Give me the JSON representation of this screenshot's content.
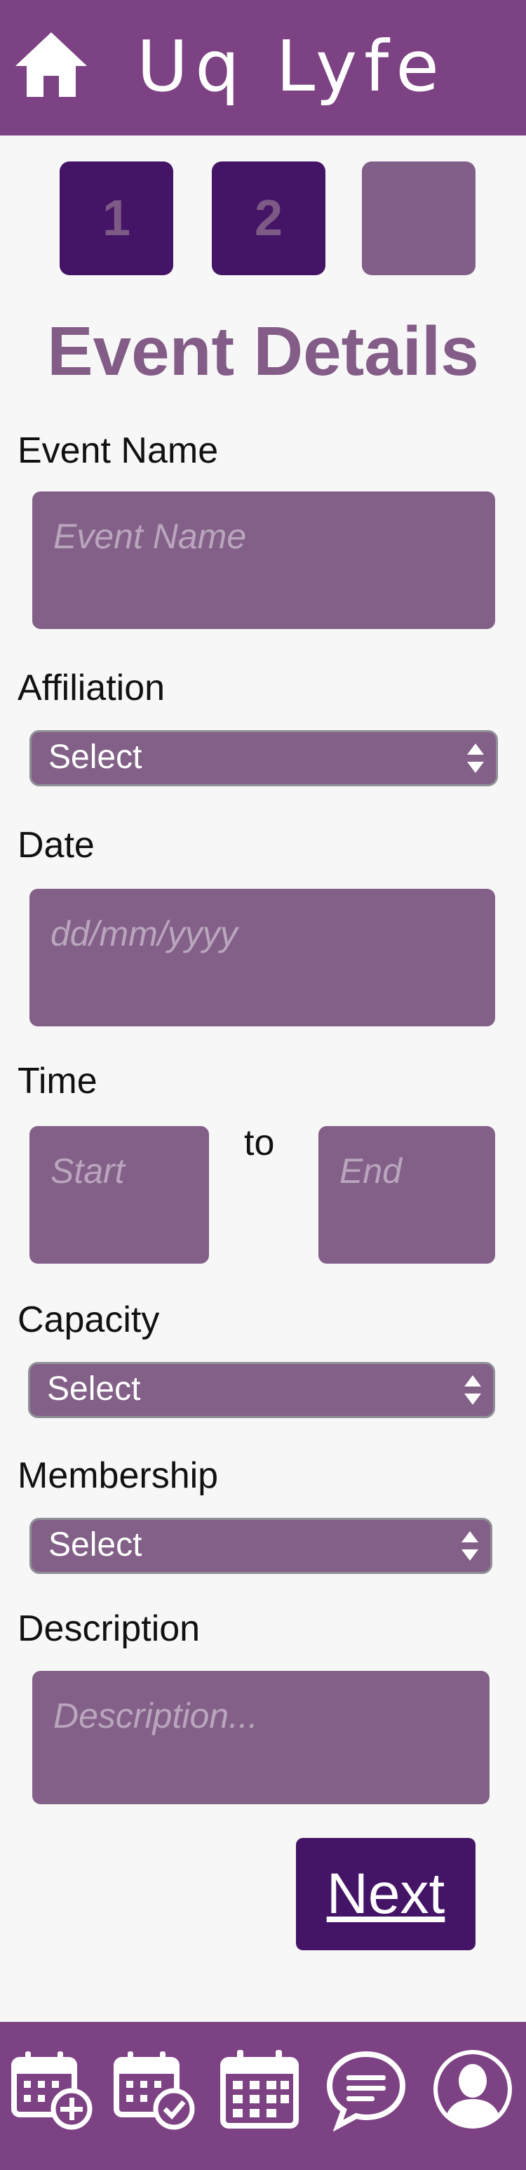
{
  "header": {
    "brand": "Uq Lyfe",
    "home_icon": "home-icon",
    "color": "#7d4283"
  },
  "steps": [
    {
      "label": "1",
      "state": "complete"
    },
    {
      "label": "2",
      "state": "current"
    },
    {
      "label": "",
      "state": "upcoming"
    }
  ],
  "page_title": "Event Details",
  "form": {
    "event_name": {
      "label": "Event Name",
      "placeholder": "Event Name"
    },
    "affiliation": {
      "label": "Affiliation",
      "selected": "Select"
    },
    "date": {
      "label": "Date",
      "placeholder": "dd/mm/yyyy"
    },
    "time": {
      "label": "Time",
      "start_placeholder": "Start",
      "separator": "to",
      "end_placeholder": "End"
    },
    "capacity": {
      "label": "Capacity",
      "selected": "Select"
    },
    "membership": {
      "label": "Membership",
      "selected": "Select"
    },
    "description": {
      "label": "Description",
      "placeholder": "Description..."
    }
  },
  "next_button": "Next",
  "bottom_nav": [
    {
      "icon": "calendar-add-icon"
    },
    {
      "icon": "calendar-check-icon"
    },
    {
      "icon": "calendar-grid-icon"
    },
    {
      "icon": "chat-bubble-icon"
    },
    {
      "icon": "user-profile-icon"
    }
  ],
  "colors": {
    "primary": "#7d4283",
    "dark_accent": "#441466",
    "field_bg": "#836088",
    "title": "#835c88"
  }
}
